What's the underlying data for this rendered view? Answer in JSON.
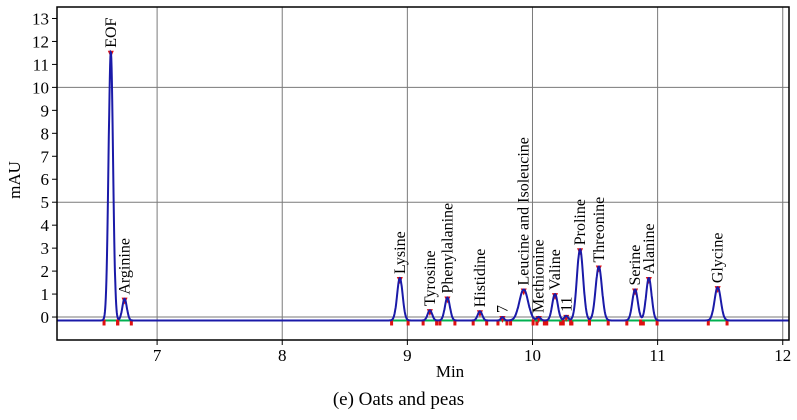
{
  "chart_data": {
    "type": "line",
    "xlabel": "Min",
    "ylabel": "mAU",
    "caption": "(e) Oats and peas",
    "xlim": [
      6.2,
      12.05
    ],
    "ylim": [
      -1.0,
      13.5
    ],
    "xticks": [
      7,
      8,
      9,
      10,
      11,
      12
    ],
    "yticks": [
      0,
      1,
      2,
      3,
      4,
      5,
      6,
      7,
      8,
      9,
      10,
      11,
      12,
      13
    ],
    "grid": true,
    "colors": {
      "signal": "#1a1aa8",
      "baseline_marker": "#00b050",
      "peak_marker": "#e01010",
      "frame": "#000000",
      "grid": "#7a7a7a"
    },
    "baseline": -0.15,
    "peaks": [
      {
        "label": "EOF",
        "time": 6.63,
        "height": 11.7,
        "width": 0.018
      },
      {
        "label": "Arginine",
        "time": 6.74,
        "height": 0.95,
        "width": 0.018
      },
      {
        "label": "Lysine",
        "time": 8.94,
        "height": 1.85,
        "width": 0.022
      },
      {
        "label": "Tyrosine",
        "time": 9.18,
        "height": 0.45,
        "width": 0.018
      },
      {
        "label": "Phenylalanine",
        "time": 9.32,
        "height": 1.0,
        "width": 0.02
      },
      {
        "label": "Histidine",
        "time": 9.58,
        "height": 0.4,
        "width": 0.018
      },
      {
        "label": "7",
        "time": 9.76,
        "height": 0.15,
        "width": 0.012
      },
      {
        "label": "Leucine and Isoleucine",
        "time": 9.93,
        "height": 1.35,
        "width": 0.035
      },
      {
        "label": "Methionine",
        "time": 10.05,
        "height": 0.15,
        "width": 0.015
      },
      {
        "label": "11",
        "time": 10.27,
        "height": 0.2,
        "width": 0.015
      },
      {
        "label": "Valine",
        "time": 10.18,
        "height": 1.15,
        "width": 0.022
      },
      {
        "label": "Proline",
        "time": 10.38,
        "height": 3.1,
        "width": 0.025
      },
      {
        "label": "Threonine",
        "time": 10.53,
        "height": 2.35,
        "width": 0.025
      },
      {
        "label": "Serine",
        "time": 10.82,
        "height": 1.35,
        "width": 0.022
      },
      {
        "label": "Alanine",
        "time": 10.93,
        "height": 1.85,
        "width": 0.022
      },
      {
        "label": "Glycine",
        "time": 11.48,
        "height": 1.45,
        "width": 0.025
      }
    ]
  }
}
